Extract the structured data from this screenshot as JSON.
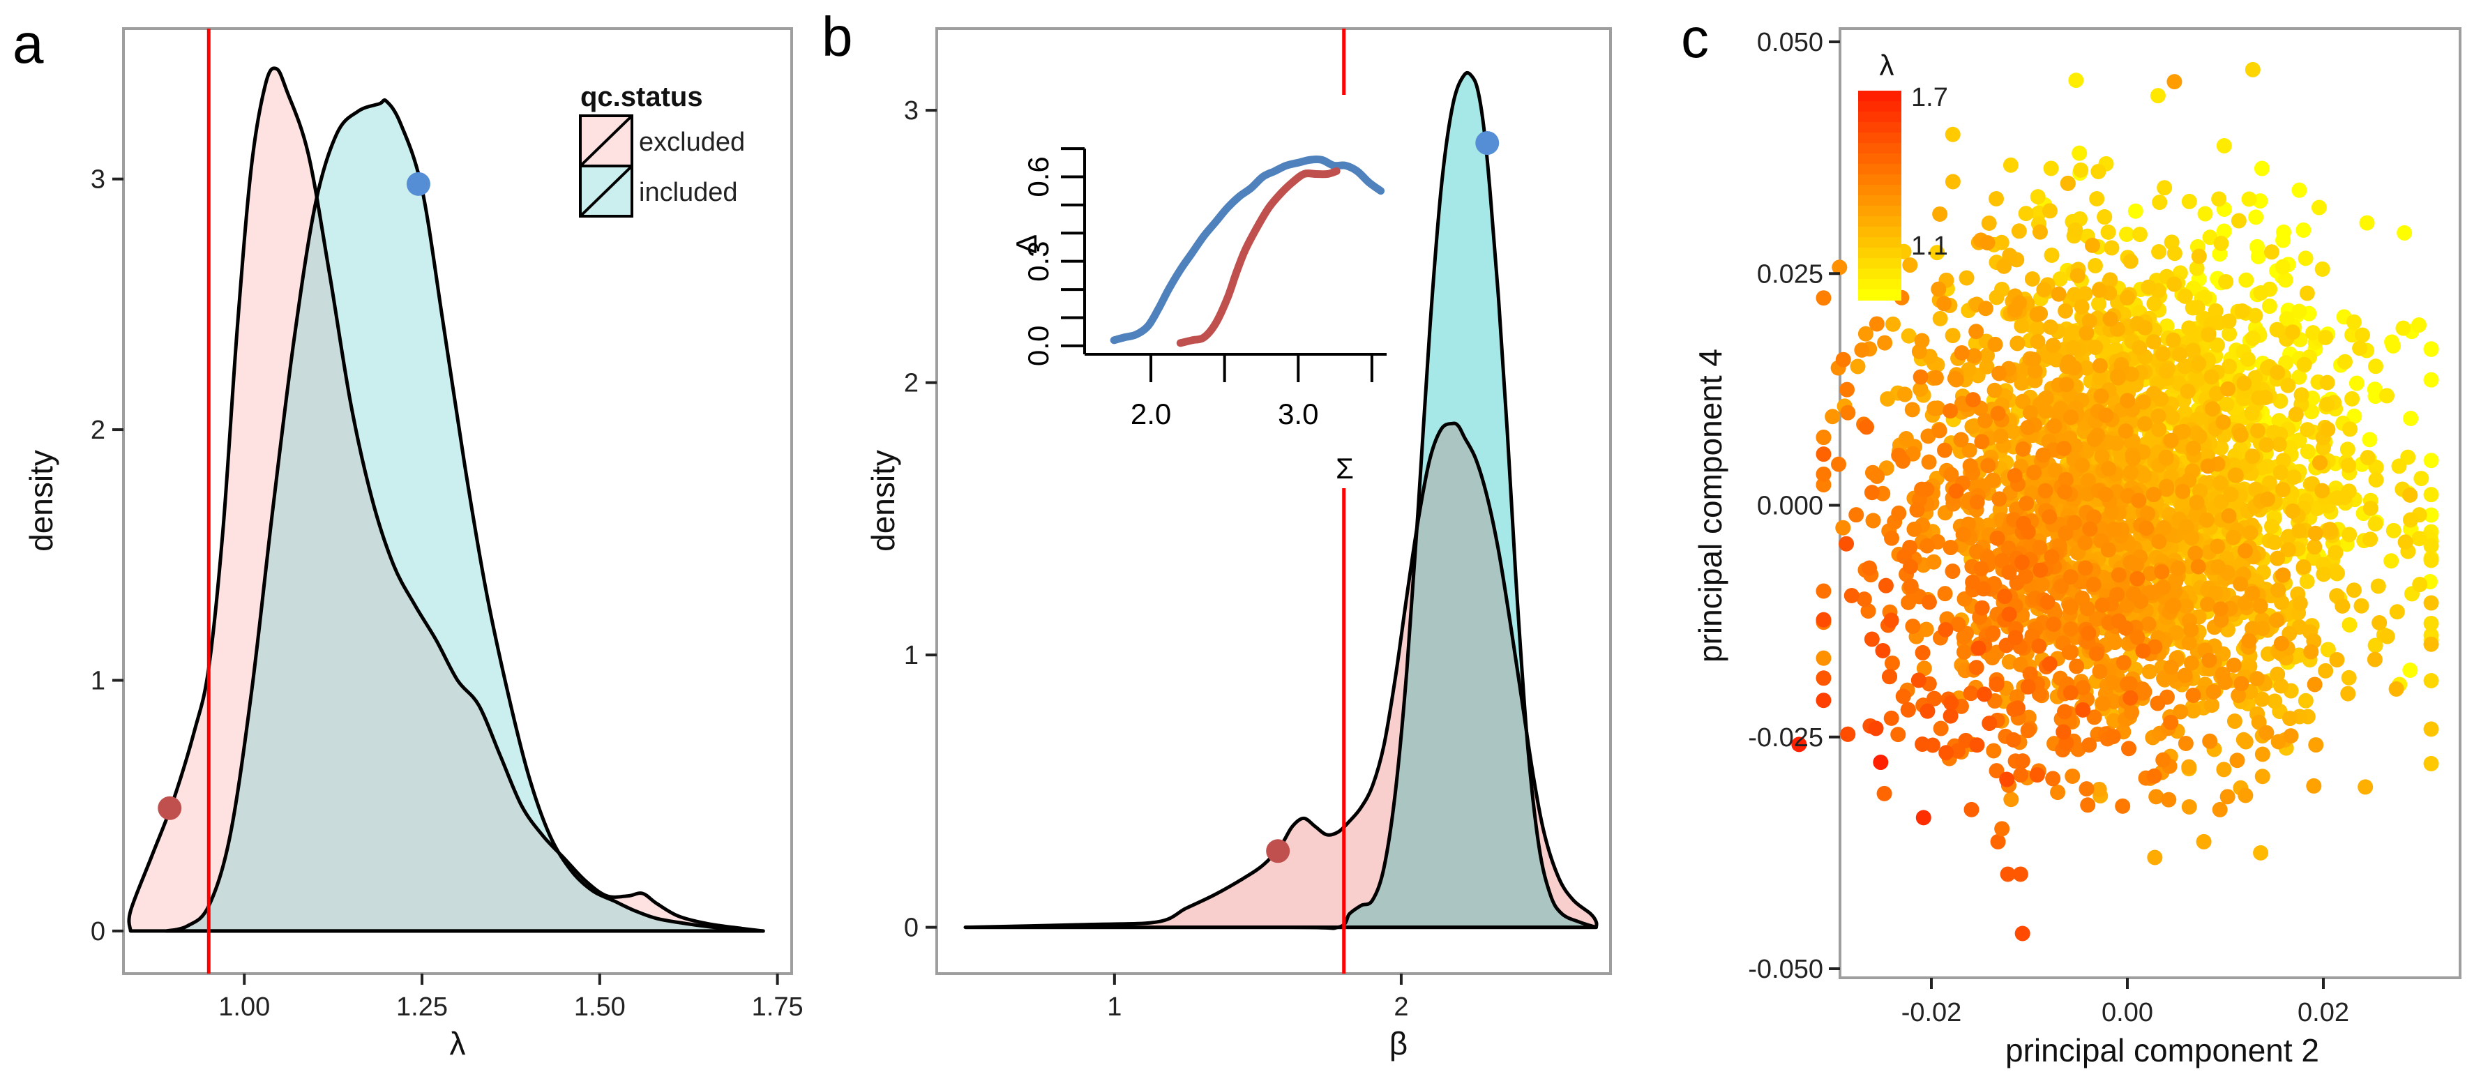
{
  "figure": {
    "panels": [
      "a",
      "b",
      "c"
    ]
  },
  "colors": {
    "excluded_fill": "#f8cfcc",
    "excluded_fill_light": "#fde2e1",
    "included_fill": "#a6e8e8",
    "included_fill_light": "#cbefef",
    "overlap_fill": "#abc5c3",
    "overlap_fill_light": "#c9dcdb",
    "threshold_line": "#ff0000",
    "marker_excluded": "#c0504d",
    "marker_included": "#558ed5",
    "inset_blue": "#4f81bd",
    "inset_red": "#c0504d",
    "colorbar_low": "#ffff00",
    "colorbar_high": "#ff2000"
  },
  "chart_data": [
    {
      "panel": "a",
      "type": "area",
      "title": "",
      "xlabel": "λ",
      "ylabel": "density",
      "xlim": [
        0.83,
        1.77
      ],
      "ylim": [
        -0.17,
        3.6
      ],
      "xticks": [
        1.0,
        1.25,
        1.5,
        1.75
      ],
      "xtick_labels": [
        "1.00",
        "1.25",
        "1.50",
        "1.75"
      ],
      "yticks": [
        0,
        1,
        2,
        3
      ],
      "ytick_labels": [
        "0",
        "1",
        "2",
        "3"
      ],
      "legend": {
        "title": "qc.status",
        "entries": [
          "excluded",
          "included"
        ],
        "placement": "top-right"
      },
      "threshold_x": 0.95,
      "series": [
        {
          "name": "excluded",
          "x": [
            0.84,
            0.84,
            0.87,
            0.9,
            0.93,
            0.95,
            0.97,
            0.99,
            1.01,
            1.03,
            1.045,
            1.06,
            1.09,
            1.12,
            1.15,
            1.18,
            1.21,
            1.24,
            1.27,
            1.3,
            1.33,
            1.36,
            1.39,
            1.42,
            1.45,
            1.48,
            1.51,
            1.54,
            1.56,
            1.58,
            1.61,
            1.65,
            1.7,
            1.73
          ],
          "y": [
            0,
            0.08,
            0.3,
            0.52,
            0.8,
            1.05,
            1.6,
            2.4,
            3.05,
            3.38,
            3.44,
            3.35,
            3.1,
            2.62,
            2.1,
            1.72,
            1.46,
            1.3,
            1.16,
            1.0,
            0.9,
            0.7,
            0.5,
            0.38,
            0.29,
            0.2,
            0.14,
            0.14,
            0.15,
            0.11,
            0.06,
            0.03,
            0.01,
            0
          ]
        },
        {
          "name": "included",
          "x": [
            0.89,
            0.92,
            0.95,
            0.98,
            1.01,
            1.04,
            1.07,
            1.1,
            1.13,
            1.16,
            1.19,
            1.2,
            1.22,
            1.25,
            1.28,
            1.31,
            1.34,
            1.37,
            1.4,
            1.43,
            1.46,
            1.49,
            1.52,
            1.55,
            1.58,
            1.62,
            1.66,
            1.7,
            1.73
          ],
          "y": [
            0,
            0.02,
            0.1,
            0.38,
            0.95,
            1.68,
            2.36,
            2.9,
            3.18,
            3.27,
            3.3,
            3.31,
            3.22,
            2.96,
            2.42,
            1.86,
            1.36,
            0.96,
            0.62,
            0.38,
            0.24,
            0.16,
            0.12,
            0.08,
            0.05,
            0.03,
            0.015,
            0.005,
            0
          ]
        }
      ],
      "markers": [
        {
          "series": "excluded",
          "x": 0.895,
          "y": 0.49
        },
        {
          "series": "included",
          "x": 1.245,
          "y": 2.98
        }
      ]
    },
    {
      "panel": "b",
      "type": "area",
      "title": "",
      "xlabel": "β",
      "ylabel": "density",
      "xlim": [
        0.38,
        2.73
      ],
      "ylim": [
        -0.17,
        3.3
      ],
      "xticks": [
        1,
        2
      ],
      "xtick_labels": [
        "1",
        "2"
      ],
      "yticks": [
        0,
        1,
        2,
        3
      ],
      "ytick_labels": [
        "0",
        "1",
        "2",
        "3"
      ],
      "threshold_x": 1.8,
      "series": [
        {
          "name": "excluded",
          "x": [
            0.48,
            0.9,
            1.15,
            1.25,
            1.35,
            1.45,
            1.52,
            1.58,
            1.62,
            1.66,
            1.7,
            1.74,
            1.78,
            1.82,
            1.86,
            1.9,
            1.94,
            1.98,
            2.02,
            2.06,
            2.1,
            2.14,
            2.18,
            2.2,
            2.22,
            2.26,
            2.3,
            2.34,
            2.38,
            2.42,
            2.46,
            2.5,
            2.55,
            2.6,
            2.66,
            2.68,
            2.68
          ],
          "y": [
            0,
            0.01,
            0.02,
            0.07,
            0.12,
            0.18,
            0.23,
            0.3,
            0.37,
            0.4,
            0.37,
            0.34,
            0.35,
            0.39,
            0.44,
            0.52,
            0.67,
            0.92,
            1.22,
            1.5,
            1.72,
            1.83,
            1.85,
            1.84,
            1.8,
            1.72,
            1.58,
            1.38,
            1.12,
            0.84,
            0.56,
            0.34,
            0.18,
            0.1,
            0.05,
            0.02,
            0
          ]
        },
        {
          "name": "included",
          "x": [
            0.48,
            1.6,
            1.78,
            1.82,
            1.86,
            1.9,
            1.94,
            1.98,
            2.02,
            2.06,
            2.1,
            2.14,
            2.18,
            2.22,
            2.25,
            2.27,
            2.29,
            2.31,
            2.34,
            2.37,
            2.4,
            2.44,
            2.48,
            2.52,
            2.56,
            2.62,
            2.68
          ],
          "y": [
            0,
            0.0,
            0.0,
            0.05,
            0.08,
            0.1,
            0.22,
            0.5,
            0.95,
            1.55,
            2.2,
            2.72,
            3.02,
            3.13,
            3.12,
            3.06,
            2.92,
            2.7,
            2.3,
            1.82,
            1.28,
            0.68,
            0.3,
            0.12,
            0.05,
            0.02,
            0
          ]
        }
      ],
      "markers": [
        {
          "series": "excluded",
          "x": 1.57,
          "y": 0.28
        },
        {
          "series": "included",
          "x": 2.3,
          "y": 2.88
        }
      ],
      "inset": {
        "type": "line",
        "xlabel": "Σ",
        "ylabel": "Δ",
        "xlim": [
          1.55,
          3.6
        ],
        "ylim": [
          -0.03,
          0.72
        ],
        "xticks": [
          2.0,
          2.5,
          3.0,
          3.5
        ],
        "xtick_labels": [
          "2.0",
          "",
          "3.0",
          ""
        ],
        "yticks": [
          0.0,
          0.1,
          0.2,
          0.3,
          0.4,
          0.5,
          0.6,
          0.7
        ],
        "ytick_labels": [
          "0.0",
          "",
          "",
          "0.3",
          "",
          "",
          "0.6",
          ""
        ],
        "series": [
          {
            "name": "included",
            "x": [
              1.75,
              1.82,
              1.9,
              1.98,
              2.05,
              2.12,
              2.2,
              2.28,
              2.36,
              2.44,
              2.52,
              2.6,
              2.68,
              2.76,
              2.84,
              2.92,
              3.0,
              3.08,
              3.16,
              3.24,
              3.32,
              3.4,
              3.48,
              3.56
            ],
            "y": [
              0.02,
              0.03,
              0.04,
              0.07,
              0.13,
              0.2,
              0.27,
              0.33,
              0.39,
              0.44,
              0.49,
              0.53,
              0.56,
              0.6,
              0.62,
              0.64,
              0.65,
              0.66,
              0.66,
              0.64,
              0.64,
              0.62,
              0.58,
              0.55
            ]
          },
          {
            "name": "excluded",
            "x": [
              2.2,
              2.28,
              2.36,
              2.44,
              2.52,
              2.58,
              2.64,
              2.72,
              2.8,
              2.88,
              2.96,
              3.04,
              3.12,
              3.2,
              3.26
            ],
            "y": [
              0.01,
              0.02,
              0.03,
              0.08,
              0.17,
              0.26,
              0.34,
              0.42,
              0.49,
              0.54,
              0.58,
              0.61,
              0.61,
              0.61,
              0.62
            ]
          }
        ]
      }
    },
    {
      "panel": "c",
      "type": "scatter",
      "title": "",
      "xlabel": "principal component 2",
      "ylabel": "principal component 4",
      "xlim": [
        -0.036,
        0.033
      ],
      "ylim": [
        -0.051,
        0.051
      ],
      "xticks": [
        -0.02,
        0.0,
        0.02
      ],
      "xtick_labels": [
        "-0.02",
        "0.00",
        "0.02"
      ],
      "yticks": [
        0.05,
        0.025,
        0.0,
        -0.025,
        -0.05
      ],
      "ytick_labels": [
        "0.050",
        "0.025",
        "0.000",
        "-0.025",
        "-0.050"
      ],
      "colorbar": {
        "title": "λ",
        "range": [
          0.9,
          1.7
        ],
        "tick_values": [
          1.7,
          1.1
        ],
        "tick_labels": [
          "1.7",
          "1.1"
        ],
        "low_color": "#ffff00",
        "high_color": "#ff2000",
        "placement": "top-left"
      },
      "point_cloud": {
        "n_points": 3000,
        "x_mean": 0.0,
        "x_sd": 0.012,
        "x_range": [
          -0.031,
          0.031
        ],
        "y_mean": 0.0,
        "y_sd": 0.014,
        "y_range": [
          -0.033,
          0.046
        ],
        "color_trend": "λ increases toward lower-left (more red), decreases toward upper-right (more yellow)"
      },
      "outliers": [
        {
          "x": -0.0335,
          "y": -0.0258,
          "lambda": 1.7
        },
        {
          "x": -0.0208,
          "y": -0.0337,
          "lambda": 1.65
        },
        {
          "x": -0.0107,
          "y": -0.0462,
          "lambda": 1.55
        },
        {
          "x": -0.0122,
          "y": -0.0398,
          "lambda": 1.5
        },
        {
          "x": -0.0109,
          "y": -0.0398,
          "lambda": 1.5
        },
        {
          "x": -0.0132,
          "y": -0.0363,
          "lambda": 1.45
        },
        {
          "x": -0.0128,
          "y": -0.0349,
          "lambda": 1.4
        },
        {
          "x": -0.0248,
          "y": -0.0311,
          "lambda": 1.45
        },
        {
          "x": 0.0028,
          "y": -0.038,
          "lambda": 1.2
        },
        {
          "x": 0.0136,
          "y": -0.0375,
          "lambda": 1.15
        },
        {
          "x": 0.0078,
          "y": -0.0363,
          "lambda": 1.2
        },
        {
          "x": 0.0048,
          "y": 0.0457,
          "lambda": 1.25
        },
        {
          "x": 0.0128,
          "y": 0.047,
          "lambda": 1.05
        }
      ]
    }
  ]
}
